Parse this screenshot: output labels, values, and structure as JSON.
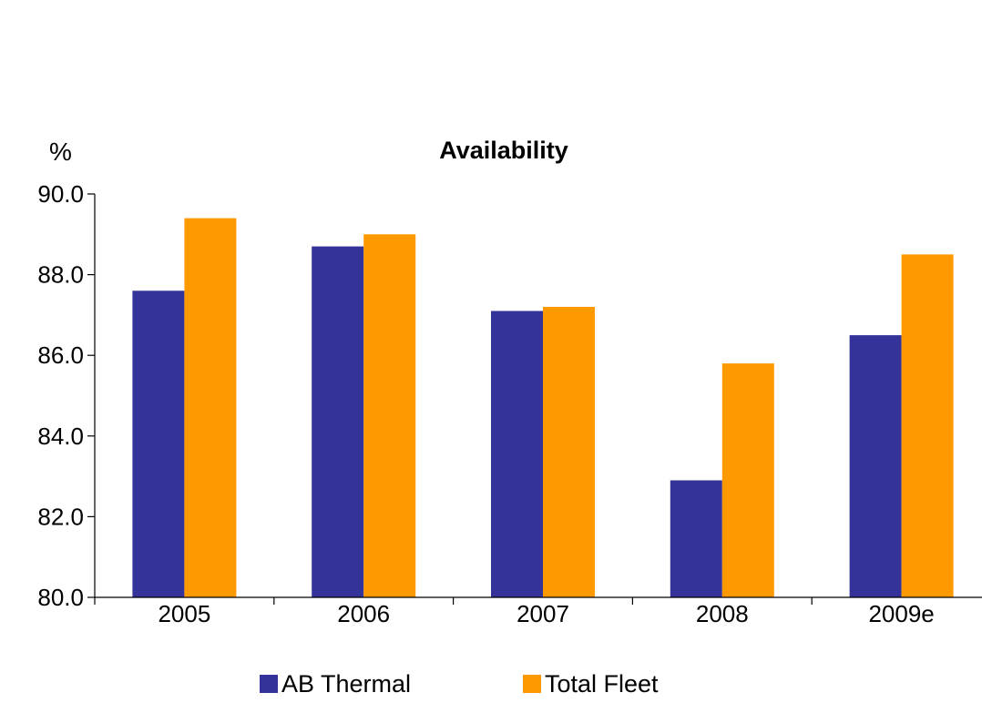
{
  "chart_data": {
    "type": "bar",
    "title": "Availability",
    "ylabel": "%",
    "xlabel": "",
    "categories": [
      "2005",
      "2006",
      "2007",
      "2008",
      "2009e"
    ],
    "series": [
      {
        "name": "AB Thermal",
        "color": "#333399",
        "values": [
          87.6,
          88.7,
          87.1,
          82.9,
          86.5
        ]
      },
      {
        "name": "Total Fleet",
        "color": "#FF9900",
        "values": [
          89.4,
          89.0,
          87.2,
          85.8,
          88.5
        ]
      }
    ],
    "ylim": [
      80.0,
      90.0
    ],
    "yticks": [
      "80.0",
      "82.0",
      "84.0",
      "86.0",
      "88.0",
      "90.0"
    ],
    "grid": false,
    "legend": "bottom"
  }
}
